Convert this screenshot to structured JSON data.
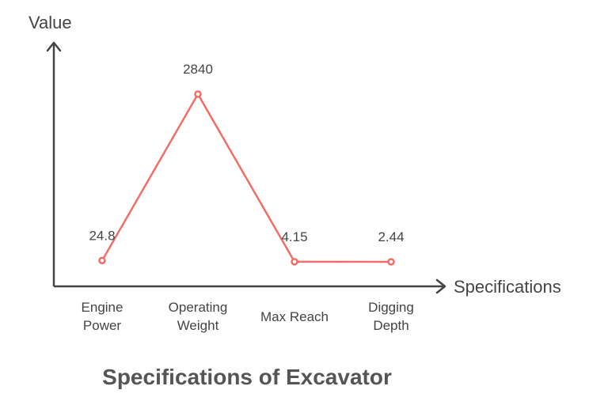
{
  "chart_data": {
    "type": "line",
    "title": "Specifications of Excavator",
    "xlabel": "Specifications",
    "ylabel": "Value",
    "categories": [
      "Engine Power",
      "Operating Weight",
      "Max Reach",
      "Digging Depth"
    ],
    "category_lines": [
      [
        "Engine",
        "Power"
      ],
      [
        "Operating",
        "Weight"
      ],
      [
        "Max Reach"
      ],
      [
        "Digging",
        "Depth"
      ]
    ],
    "series": [
      {
        "values": [
          24.8,
          2840,
          4.15,
          2.44
        ],
        "labels": [
          "24.8",
          "2840",
          "4.15",
          "2.44"
        ],
        "color": "#f06e68"
      }
    ],
    "grid": false,
    "legend": "none"
  }
}
